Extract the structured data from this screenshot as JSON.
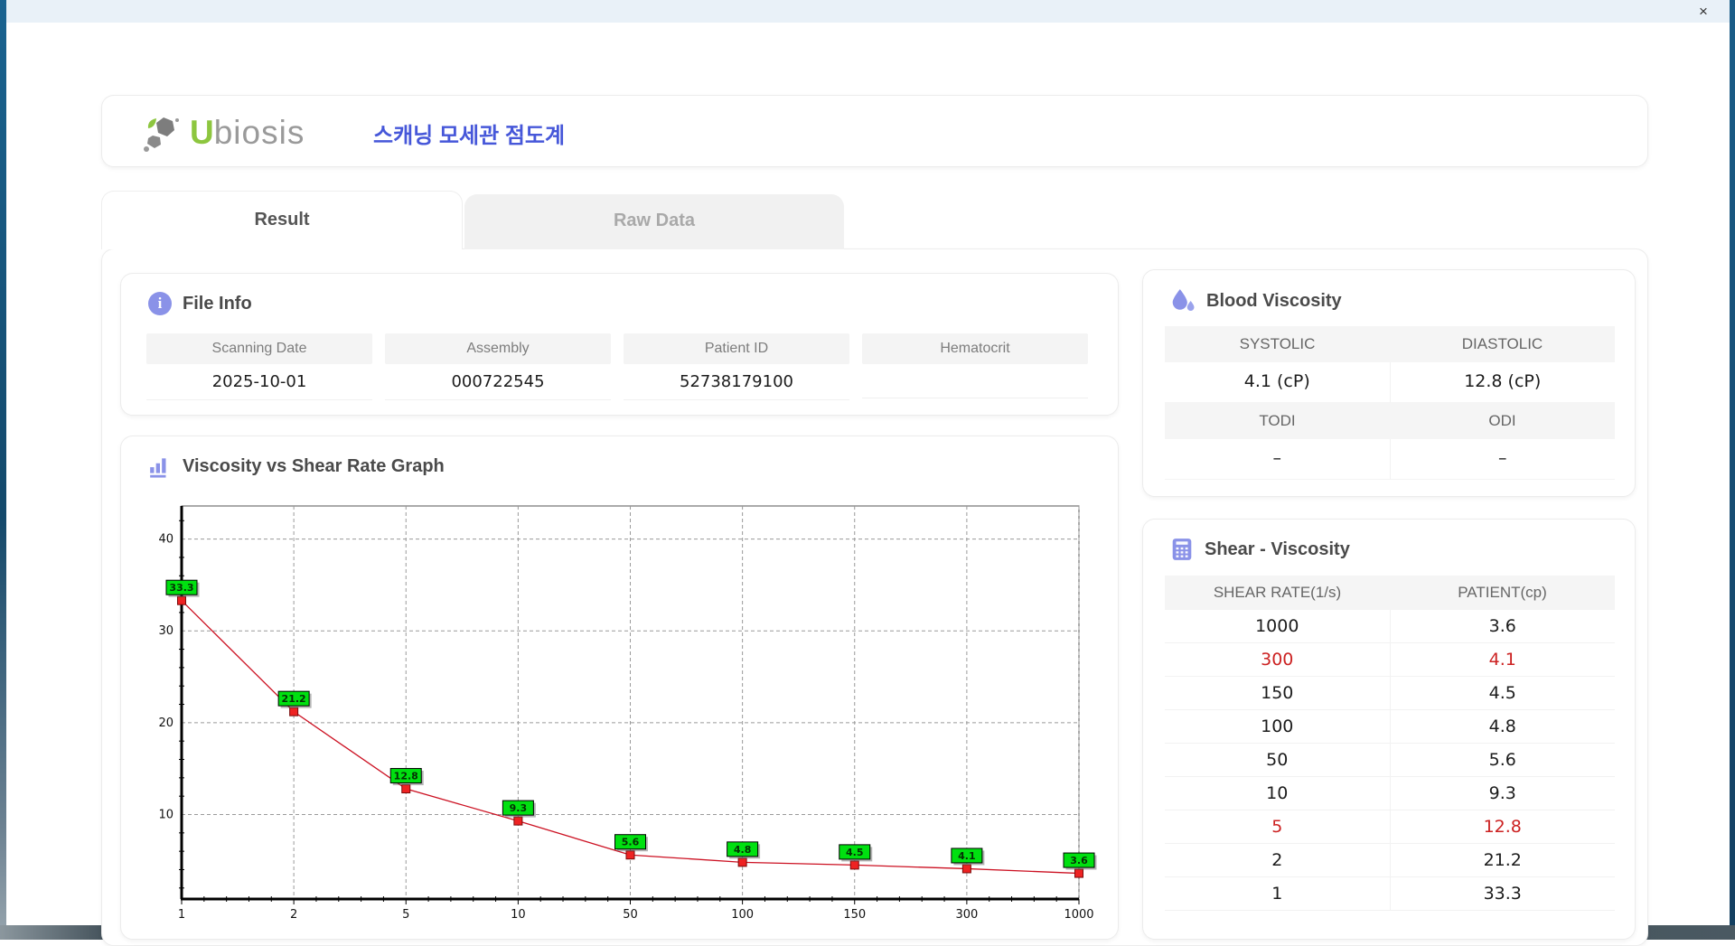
{
  "window": {
    "close_label": "×"
  },
  "header": {
    "logo_u": "U",
    "logo_rest": "biosis",
    "title_ko": "스캐닝 모세관 점도계"
  },
  "tabs": [
    {
      "label": "Result",
      "active": true
    },
    {
      "label": "Raw Data",
      "active": false
    }
  ],
  "file_info": {
    "heading": "File Info",
    "fields": [
      {
        "label": "Scanning Date",
        "value": "2025-10-01"
      },
      {
        "label": "Assembly",
        "value": "000722545"
      },
      {
        "label": "Patient ID",
        "value": "52738179100"
      },
      {
        "label": "Hematocrit",
        "value": ""
      }
    ]
  },
  "blood_viscosity": {
    "heading": "Blood Viscosity",
    "sections": [
      {
        "cols": [
          {
            "label": "SYSTOLIC",
            "value": "4.1 (cP)"
          },
          {
            "label": "DIASTOLIC",
            "value": "12.8 (cP)"
          }
        ]
      },
      {
        "cols": [
          {
            "label": "TODI",
            "value": "–"
          },
          {
            "label": "ODI",
            "value": "–"
          }
        ]
      }
    ]
  },
  "shear_viscosity": {
    "heading": "Shear - Viscosity",
    "columns": [
      "SHEAR RATE(1/s)",
      "PATIENT(cp)"
    ],
    "rows": [
      {
        "rate": "1000",
        "patient": "3.6",
        "highlight": false
      },
      {
        "rate": "300",
        "patient": "4.1",
        "highlight": true
      },
      {
        "rate": "150",
        "patient": "4.5",
        "highlight": false
      },
      {
        "rate": "100",
        "patient": "4.8",
        "highlight": false
      },
      {
        "rate": "50",
        "patient": "5.6",
        "highlight": false
      },
      {
        "rate": "10",
        "patient": "9.3",
        "highlight": false
      },
      {
        "rate": "5",
        "patient": "12.8",
        "highlight": true
      },
      {
        "rate": "2",
        "patient": "21.2",
        "highlight": false
      },
      {
        "rate": "1",
        "patient": "33.3",
        "highlight": false
      }
    ]
  },
  "graph": {
    "heading": "Viscosity vs Shear Rate Graph"
  },
  "chart_data": {
    "type": "line",
    "title": "Viscosity vs Shear Rate Graph",
    "categories": [
      "1",
      "2",
      "5",
      "10",
      "50",
      "100",
      "150",
      "300",
      "1000"
    ],
    "series": [
      {
        "name": "PATIENT(cp)",
        "values": [
          33.3,
          21.2,
          12.8,
          9.3,
          5.6,
          4.8,
          4.5,
          4.1,
          3.6
        ]
      }
    ],
    "xlabel": "",
    "ylabel": "",
    "x_scale": "categorical",
    "yticks": [
      10,
      20,
      30,
      40
    ],
    "ylim": [
      0.8,
      43.6
    ],
    "grid": true,
    "legend": false,
    "line_color": "#cc1122",
    "marker_color": "#ee2222",
    "marker_border": "#7a0a0a",
    "label_bg": "#00e010",
    "label_border": "#000000"
  },
  "colors": {
    "accent_blue": "#4657d9",
    "icon_purple": "#8a92e8",
    "highlight_red": "#cc2222",
    "logo_green": "#8dc63f",
    "logo_gray": "#9a9a9a"
  }
}
